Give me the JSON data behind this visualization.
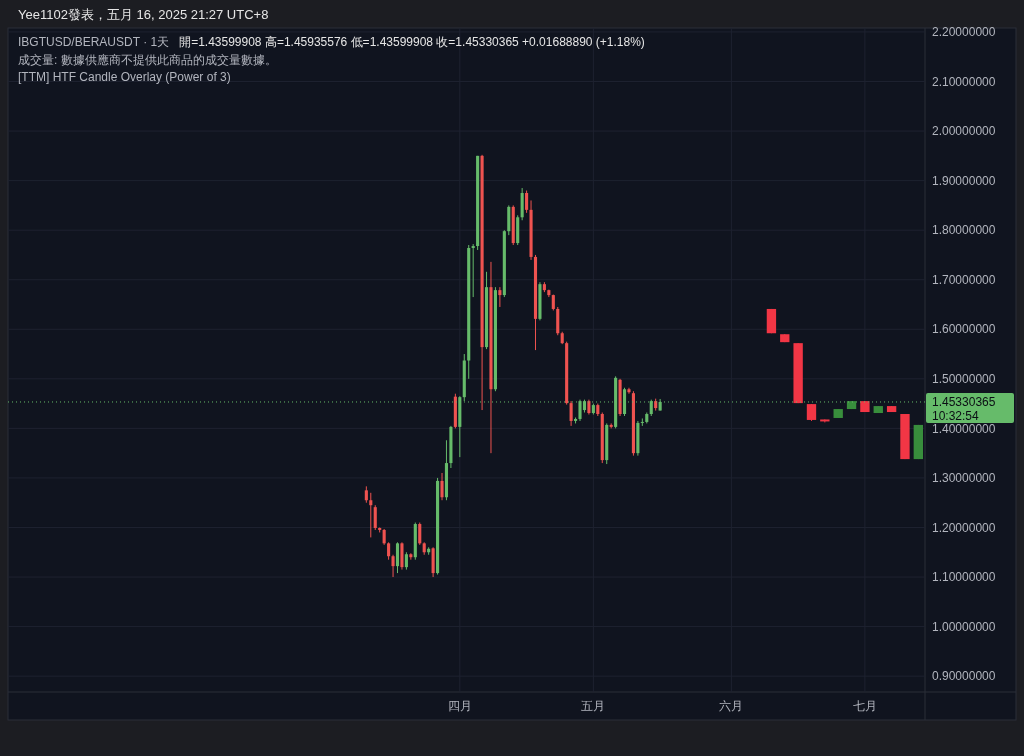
{
  "chart_data": {
    "type": "candlestick",
    "title": "IBGTUSD/BERAUSDT · 1天",
    "subtitle": "開=1.43599908  高=1.45935576  低=1.43599908  收=1.45330365  +0.01688890 (+1.18%)",
    "annotations": [
      "Yee1102發表，五月 16, 2025 21:27 UTC+8",
      "成交量: 數據供應商不提供此商品的成交量數據。",
      "[TTM] HTF Candle Overlay (Power of 3)",
      "10:32:54"
    ],
    "categories": [
      null,
      null,
      null,
      null,
      null,
      null,
      null,
      null,
      null,
      null,
      null,
      null,
      null,
      null,
      null,
      null,
      null,
      null,
      null,
      null,
      null,
      null,
      null,
      null,
      null,
      null,
      null,
      null,
      null,
      null,
      null,
      null,
      null,
      null,
      null,
      null,
      null,
      null,
      null,
      null,
      null,
      null,
      null,
      null,
      null,
      null,
      null,
      null,
      null,
      null,
      null,
      null,
      null,
      null,
      null,
      null,
      null,
      null,
      null,
      null,
      null,
      null,
      null,
      null,
      null,
      null,
      null,
      null,
      null,
      null,
      null,
      null,
      null,
      null,
      null,
      null,
      null,
      null,
      null,
      null,
      null,
      null,
      null,
      null,
      null,
      null,
      null,
      null,
      null,
      null,
      null,
      null,
      null,
      null,
      null,
      null,
      null,
      null,
      null,
      null,
      null,
      "四月",
      null,
      null,
      null,
      null,
      null,
      null,
      null,
      null,
      null,
      null,
      null,
      null,
      null,
      null,
      null,
      null,
      null,
      null,
      null,
      null,
      null,
      null,
      null,
      null,
      null,
      null,
      null,
      null,
      null,
      "五月",
      null,
      null,
      null,
      null,
      null,
      null,
      null,
      null,
      null,
      null,
      null,
      null,
      null,
      null,
      null,
      null,
      null,
      null,
      null,
      null,
      null,
      null,
      null,
      null,
      null,
      null,
      null,
      null,
      null,
      null,
      "六月",
      null,
      null,
      null,
      null,
      null,
      null,
      null,
      null,
      null,
      null,
      null,
      null,
      null,
      null,
      null,
      null,
      null,
      null,
      null,
      null,
      null,
      null,
      null,
      null,
      null,
      null,
      null,
      null,
      null,
      "七月",
      null,
      null,
      null,
      null,
      null,
      null,
      null,
      null,
      null,
      null,
      null,
      null,
      null
    ],
    "ylim": [
      0.868,
      2.208
    ],
    "yticks": [
      {
        "value": 0.9,
        "label": "0.90000000"
      },
      {
        "value": 1.0,
        "label": "1.00000000"
      },
      {
        "value": 1.1,
        "label": "1.10000000"
      },
      {
        "value": 1.2,
        "label": "1.20000000"
      },
      {
        "value": 1.3,
        "label": "1.30000000"
      },
      {
        "value": 1.4,
        "label": "1.40000000"
      },
      {
        "value": 1.5,
        "label": "1.50000000"
      },
      {
        "value": 1.6,
        "label": "1.60000000"
      },
      {
        "value": 1.7,
        "label": "1.70000000"
      },
      {
        "value": 1.8,
        "label": "1.80000000"
      },
      {
        "value": 1.9,
        "label": "1.90000000"
      },
      {
        "value": 2.0,
        "label": "2.00000000"
      },
      {
        "value": 2.1,
        "label": "2.10000000"
      },
      {
        "value": 2.2,
        "label": "2.20000000"
      }
    ],
    "grid": true,
    "ref_lines": [
      {
        "axis": "y",
        "value": 1.45330365,
        "label": "1.45330365",
        "color": "#66bb6a",
        "line_style": "dotted"
      }
    ],
    "series": [
      {
        "ohlc": [
          null,
          null,
          null,
          null,
          null,
          null,
          null,
          null,
          null,
          null,
          null,
          null,
          null,
          null,
          null,
          null,
          null,
          null,
          null,
          null,
          null,
          null,
          null,
          null,
          null,
          null,
          null,
          null,
          null,
          null,
          null,
          null,
          null,
          null,
          null,
          null,
          null,
          null,
          null,
          null,
          null,
          null,
          null,
          null,
          null,
          null,
          null,
          null,
          null,
          null,
          null,
          null,
          null,
          null,
          null,
          null,
          null,
          null,
          null,
          null,
          null,
          null,
          null,
          null,
          null,
          null,
          null,
          null,
          null,
          null,
          null,
          null,
          null,
          null,
          null,
          null,
          null,
          null,
          null,
          null,
          [
            1.275,
            1.283,
            1.25,
            1.255
          ],
          [
            1.255,
            1.27,
            1.18,
            1.245
          ],
          [
            1.241,
            1.245,
            1.195,
            1.199
          ],
          [
            1.199,
            1.2,
            1.19,
            1.195
          ],
          [
            1.195,
            1.197,
            1.165,
            1.168
          ],
          [
            1.168,
            1.17,
            1.135,
            1.142
          ],
          [
            1.142,
            1.145,
            1.1,
            1.122
          ],
          [
            1.122,
            1.17,
            1.108,
            1.168
          ],
          [
            1.168,
            1.17,
            1.115,
            1.12
          ],
          [
            1.12,
            1.15,
            1.115,
            1.146
          ],
          [
            1.146,
            1.148,
            1.135,
            1.14
          ],
          [
            1.14,
            1.21,
            1.135,
            1.207
          ],
          [
            1.207,
            1.21,
            1.165,
            1.168
          ],
          [
            1.168,
            1.17,
            1.145,
            1.15
          ],
          [
            1.15,
            1.16,
            1.145,
            1.157
          ],
          [
            1.158,
            1.16,
            1.1,
            1.108
          ],
          [
            1.108,
            1.3,
            1.105,
            1.294
          ],
          [
            1.294,
            1.31,
            1.255,
            1.261
          ],
          [
            1.261,
            1.376,
            1.255,
            1.33
          ],
          [
            1.33,
            1.405,
            1.32,
            1.403
          ],
          [
            1.464,
            1.47,
            1.4,
            1.403
          ],
          [
            1.403,
            1.465,
            1.342,
            1.463
          ],
          [
            1.463,
            1.55,
            1.455,
            1.537
          ],
          [
            1.537,
            1.77,
            1.5,
            1.764
          ],
          [
            1.764,
            1.772,
            1.665,
            1.768
          ],
          [
            1.768,
            1.95,
            1.76,
            1.95
          ],
          [
            1.95,
            1.952,
            1.437,
            1.564
          ],
          [
            1.564,
            1.716,
            1.56,
            1.685
          ],
          [
            1.685,
            1.736,
            1.35,
            1.479
          ],
          [
            1.479,
            1.685,
            1.475,
            1.679
          ],
          [
            1.679,
            1.685,
            1.645,
            1.669
          ],
          [
            1.669,
            1.8,
            1.665,
            1.798
          ],
          [
            1.798,
            1.85,
            1.79,
            1.847
          ],
          [
            1.847,
            1.85,
            1.77,
            1.774
          ],
          [
            1.774,
            1.83,
            1.77,
            1.826
          ],
          [
            1.826,
            1.885,
            1.82,
            1.875
          ],
          [
            1.875,
            1.88,
            1.835,
            1.841
          ],
          [
            1.841,
            1.86,
            1.74,
            1.746
          ],
          [
            1.746,
            1.75,
            1.558,
            1.621
          ],
          [
            1.621,
            1.695,
            1.618,
            1.691
          ],
          [
            1.691,
            1.695,
            1.675,
            1.679
          ],
          [
            1.679,
            1.68,
            1.665,
            1.669
          ],
          [
            1.669,
            1.67,
            1.638,
            1.641
          ],
          [
            1.641,
            1.645,
            1.588,
            1.592
          ],
          [
            1.592,
            1.595,
            1.57,
            1.572
          ],
          [
            1.572,
            1.575,
            1.448,
            1.451
          ],
          [
            1.451,
            1.455,
            1.405,
            1.415
          ],
          [
            1.415,
            1.422,
            1.41,
            1.419
          ],
          [
            1.419,
            1.458,
            1.415,
            1.455
          ],
          [
            1.437,
            1.458,
            1.432,
            1.455
          ],
          [
            1.455,
            1.458,
            1.428,
            1.431
          ],
          [
            1.431,
            1.45,
            1.428,
            1.447
          ],
          [
            1.447,
            1.45,
            1.425,
            1.429
          ],
          [
            1.429,
            1.432,
            1.33,
            1.336
          ],
          [
            1.336,
            1.41,
            1.328,
            1.407
          ],
          [
            1.407,
            1.41,
            1.4,
            1.403
          ],
          [
            1.403,
            1.505,
            1.4,
            1.502
          ],
          [
            1.498,
            1.5,
            1.425,
            1.429
          ],
          [
            1.429,
            1.482,
            1.425,
            1.479
          ],
          [
            1.479,
            1.482,
            1.47,
            1.473
          ],
          [
            1.471,
            1.475,
            1.345,
            1.35
          ],
          [
            1.35,
            1.415,
            1.345,
            1.411
          ],
          [
            1.411,
            1.42,
            1.405,
            1.413
          ],
          [
            1.413,
            1.432,
            1.41,
            1.429
          ],
          [
            1.429,
            1.458,
            1.425,
            1.455
          ],
          [
            1.455,
            1.46,
            1.436,
            1.441
          ],
          [
            1.43599908,
            1.45935576,
            1.43599908,
            1.45330365
          ],
          null,
          null,
          null,
          null,
          null,
          null,
          null,
          null,
          null,
          null,
          null,
          null,
          null,
          null,
          null,
          null,
          null,
          null,
          null,
          null,
          null,
          null,
          null,
          null,
          null,
          null,
          null,
          null,
          null,
          null,
          null,
          null,
          null,
          null,
          null,
          null,
          null,
          null,
          null,
          null,
          null,
          null,
          null,
          null,
          null,
          null,
          null,
          null,
          null,
          null,
          null,
          null,
          null,
          null,
          null,
          null,
          null,
          null,
          null
        ],
        "colors": [
          null,
          null,
          null,
          null,
          null,
          null,
          null,
          null,
          null,
          null,
          null,
          null,
          null,
          null,
          null,
          null,
          null,
          null,
          null,
          null,
          null,
          null,
          null,
          null,
          null,
          null,
          null,
          null,
          null,
          null,
          null,
          null,
          null,
          null,
          null,
          null,
          null,
          null,
          null,
          null,
          null,
          null,
          null,
          null,
          null,
          null,
          null,
          null,
          null,
          null,
          null,
          null,
          null,
          null,
          null,
          null,
          null,
          null,
          null,
          null,
          null,
          null,
          null,
          null,
          null,
          null,
          null,
          null,
          null,
          null,
          null,
          null,
          null,
          null,
          null,
          null,
          null,
          null,
          null,
          null,
          "#ef5350",
          "#ef5350",
          "#ef5350",
          "#ef5350",
          "#ef5350",
          "#ef5350",
          "#ef5350",
          "#66bb6a",
          "#ef5350",
          "#66bb6a",
          "#ef5350",
          "#66bb6a",
          "#ef5350",
          "#ef5350",
          "#66bb6a",
          "#ef5350",
          "#66bb6a",
          "#ef5350",
          "#66bb6a",
          "#66bb6a",
          "#ef5350",
          "#66bb6a",
          "#66bb6a",
          "#66bb6a",
          "#66bb6a",
          "#66bb6a",
          "#ef5350",
          "#66bb6a",
          "#ef5350",
          "#66bb6a",
          "#ef5350",
          "#66bb6a",
          "#66bb6a",
          "#ef5350",
          "#66bb6a",
          "#66bb6a",
          "#ef5350",
          "#ef5350",
          "#ef5350",
          "#66bb6a",
          "#ef5350",
          "#ef5350",
          "#ef5350",
          "#ef5350",
          "#ef5350",
          "#ef5350",
          "#ef5350",
          "#66bb6a",
          "#66bb6a",
          "#66bb6a",
          "#ef5350",
          "#66bb6a",
          "#ef5350",
          "#ef5350",
          "#66bb6a",
          "#ef5350",
          "#66bb6a",
          "#ef5350",
          "#66bb6a",
          "#ef5350",
          "#ef5350",
          "#66bb6a",
          "#66bb6a",
          "#66bb6a",
          "#66bb6a",
          "#ef5350",
          "#66bb6a",
          null,
          null,
          null,
          null,
          null,
          null,
          null,
          null,
          null,
          null,
          null,
          null,
          null,
          null,
          null,
          null,
          null,
          null,
          null,
          null,
          null,
          null,
          null,
          null,
          null,
          null,
          null,
          null,
          null,
          null,
          null,
          null,
          null,
          null,
          null,
          null,
          null,
          null,
          null,
          null,
          null,
          null,
          null,
          null,
          null,
          null,
          null,
          null,
          null,
          null,
          null,
          null,
          null,
          null,
          null,
          null,
          null,
          null,
          null
        ]
      },
      {
        "ohlc": [
          null,
          null,
          null,
          null,
          null,
          null,
          null,
          null,
          null,
          null,
          null,
          null,
          null,
          null,
          null,
          null,
          null,
          null,
          null,
          null,
          null,
          null,
          null,
          null,
          null,
          null,
          null,
          null,
          null,
          null,
          null,
          null,
          null,
          null,
          null,
          null,
          null,
          null,
          null,
          null,
          null,
          null,
          null,
          null,
          null,
          null,
          null,
          null,
          null,
          null,
          null,
          null,
          null,
          null,
          null,
          null,
          null,
          null,
          null,
          null,
          null,
          null,
          null,
          null,
          null,
          null,
          null,
          null,
          null,
          null,
          null,
          null,
          null,
          null,
          null,
          null,
          null,
          null,
          null,
          null,
          null,
          null,
          null,
          null,
          null,
          null,
          null,
          null,
          null,
          null,
          null,
          null,
          null,
          null,
          null,
          null,
          null,
          null,
          null,
          null,
          null,
          null,
          null,
          null,
          null,
          null,
          null,
          null,
          null,
          null,
          null,
          null,
          null,
          null,
          null,
          null,
          null,
          null,
          null,
          null,
          null,
          null,
          null,
          null,
          null,
          null,
          null,
          null,
          null,
          null,
          null,
          null,
          null,
          null,
          null,
          null,
          null,
          null,
          null,
          null,
          null,
          null,
          null,
          null,
          null,
          null,
          null,
          null,
          null,
          null,
          null,
          null,
          null,
          null,
          null,
          null,
          null,
          null,
          null,
          null,
          null,
          null,
          null,
          null,
          null,
          null,
          null,
          null,
          null,
          null,
          null,
          [
            1.641,
            1.641,
            1.592,
            1.592
          ],
          null,
          null,
          [
            1.59,
            1.59,
            1.574,
            1.574
          ],
          null,
          null,
          [
            1.572,
            1.572,
            1.451,
            1.451
          ],
          null,
          null,
          [
            1.449,
            1.449,
            1.415,
            1.417
          ],
          null,
          null,
          [
            1.418,
            1.418,
            1.412,
            1.414
          ],
          null,
          null,
          [
            1.421,
            1.439,
            1.421,
            1.439
          ],
          null,
          null,
          [
            1.439,
            1.455,
            1.439,
            1.455
          ],
          null,
          null,
          [
            1.455,
            1.455,
            1.433,
            1.433
          ],
          null,
          null,
          [
            1.431,
            1.445,
            1.431,
            1.445
          ],
          null,
          null,
          [
            1.445,
            1.445,
            1.433,
            1.433
          ],
          null,
          null,
          [
            1.429,
            1.429,
            1.338,
            1.338
          ],
          null,
          null,
          [
            1.338,
            1.407,
            1.338,
            1.407
          ],
          null
        ],
        "colors": [
          null,
          null,
          null,
          null,
          null,
          null,
          null,
          null,
          null,
          null,
          null,
          null,
          null,
          null,
          null,
          null,
          null,
          null,
          null,
          null,
          null,
          null,
          null,
          null,
          null,
          null,
          null,
          null,
          null,
          null,
          null,
          null,
          null,
          null,
          null,
          null,
          null,
          null,
          null,
          null,
          null,
          null,
          null,
          null,
          null,
          null,
          null,
          null,
          null,
          null,
          null,
          null,
          null,
          null,
          null,
          null,
          null,
          null,
          null,
          null,
          null,
          null,
          null,
          null,
          null,
          null,
          null,
          null,
          null,
          null,
          null,
          null,
          null,
          null,
          null,
          null,
          null,
          null,
          null,
          null,
          null,
          null,
          null,
          null,
          null,
          null,
          null,
          null,
          null,
          null,
          null,
          null,
          null,
          null,
          null,
          null,
          null,
          null,
          null,
          null,
          null,
          null,
          null,
          null,
          null,
          null,
          null,
          null,
          null,
          null,
          null,
          null,
          null,
          null,
          null,
          null,
          null,
          null,
          null,
          null,
          null,
          null,
          null,
          null,
          null,
          null,
          null,
          null,
          null,
          null,
          null,
          null,
          null,
          null,
          null,
          null,
          null,
          null,
          null,
          null,
          null,
          null,
          null,
          null,
          null,
          null,
          null,
          null,
          null,
          null,
          null,
          null,
          null,
          null,
          null,
          null,
          null,
          null,
          null,
          null,
          null,
          null,
          null,
          null,
          null,
          null,
          null,
          null,
          null,
          null,
          null,
          "#f23645",
          null,
          null,
          "#f23645",
          null,
          null,
          "#f23645",
          null,
          null,
          "#f23645",
          null,
          null,
          "#f23645",
          null,
          null,
          "#388e3c",
          null,
          null,
          "#388e3c",
          null,
          null,
          "#f23645",
          null,
          null,
          "#388e3c",
          null,
          null,
          "#f23645",
          null,
          null,
          "#f23645",
          null,
          null,
          "#388e3c",
          null
        ]
      }
    ]
  }
}
